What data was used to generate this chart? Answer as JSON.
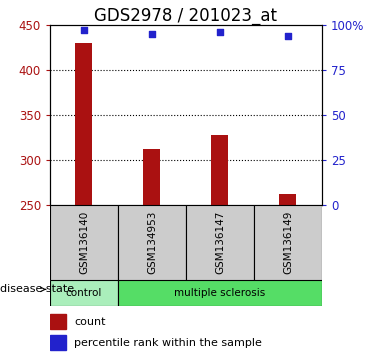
{
  "title": "GDS2978 / 201023_at",
  "samples": [
    "GSM136140",
    "GSM134953",
    "GSM136147",
    "GSM136149"
  ],
  "counts": [
    430,
    312,
    328,
    262
  ],
  "percentiles": [
    97,
    95,
    96,
    94
  ],
  "ylim_left": [
    250,
    450
  ],
  "ylim_right": [
    0,
    100
  ],
  "yticks_left": [
    250,
    300,
    350,
    400,
    450
  ],
  "yticks_right": [
    0,
    25,
    50,
    75,
    100
  ],
  "ytick_labels_right": [
    "0",
    "25",
    "50",
    "75",
    "100%"
  ],
  "bar_color": "#aa1111",
  "scatter_color": "#2222cc",
  "sample_box_color": "#cccccc",
  "control_color": "#aaeebb",
  "ms_color": "#55dd66",
  "legend_count_label": "count",
  "legend_pct_label": "percentile rank within the sample",
  "disease_label": "disease state",
  "bar_width": 0.25,
  "title_fontsize": 12,
  "tick_fontsize": 8.5,
  "label_fontsize": 8,
  "legend_fontsize": 8
}
